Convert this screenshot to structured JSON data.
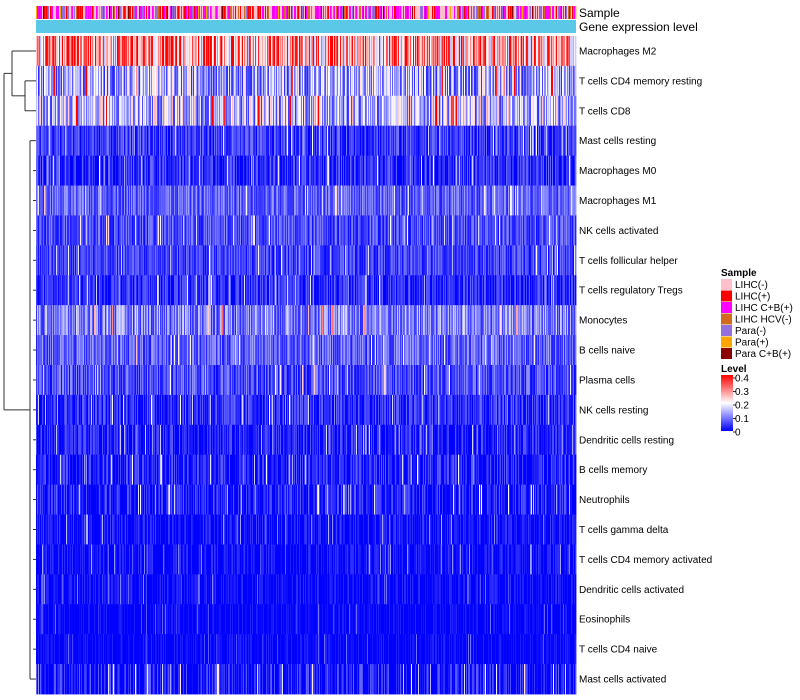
{
  "chart_data": {
    "type": "heatmap",
    "title": "",
    "annotation_tracks": [
      "Sample",
      "Gene expression level"
    ],
    "rows": [
      {
        "label": "Macrophages M2",
        "mean": 0.28,
        "spread": 0.13
      },
      {
        "label": "T cells CD4 memory resting",
        "mean": 0.13,
        "spread": 0.1
      },
      {
        "label": "T cells CD8",
        "mean": 0.15,
        "spread": 0.11
      },
      {
        "label": "Mast cells resting",
        "mean": 0.045,
        "spread": 0.05
      },
      {
        "label": "Macrophages M0",
        "mean": 0.035,
        "spread": 0.05
      },
      {
        "label": "Macrophages M1",
        "mean": 0.075,
        "spread": 0.05
      },
      {
        "label": "NK cells activated",
        "mean": 0.06,
        "spread": 0.05
      },
      {
        "label": "T cells follicular helper",
        "mean": 0.05,
        "spread": 0.045
      },
      {
        "label": "T cells regulatory  Tregs",
        "mean": 0.035,
        "spread": 0.045
      },
      {
        "label": "Monocytes",
        "mean": 0.1,
        "spread": 0.07
      },
      {
        "label": "B cells naive",
        "mean": 0.075,
        "spread": 0.055
      },
      {
        "label": "Plasma cells",
        "mean": 0.06,
        "spread": 0.055
      },
      {
        "label": "NK cells resting",
        "mean": 0.035,
        "spread": 0.05
      },
      {
        "label": "Dendritic cells resting",
        "mean": 0.025,
        "spread": 0.045
      },
      {
        "label": "B cells memory",
        "mean": 0.025,
        "spread": 0.05
      },
      {
        "label": "Neutrophils",
        "mean": 0.025,
        "spread": 0.05
      },
      {
        "label": "T cells gamma delta",
        "mean": 0.012,
        "spread": 0.04
      },
      {
        "label": "T cells CD4 memory activated",
        "mean": 0.008,
        "spread": 0.035
      },
      {
        "label": "Dendritic cells activated",
        "mean": 0.008,
        "spread": 0.03
      },
      {
        "label": "Eosinophils",
        "mean": 0.004,
        "spread": 0.025
      },
      {
        "label": "T cells CD4 naive",
        "mean": 0.004,
        "spread": 0.025
      },
      {
        "label": "Mast cells activated",
        "mean": 0.02,
        "spread": 0.06
      }
    ],
    "n_samples": 540,
    "sample_legend": {
      "title": "Sample",
      "entries": [
        {
          "label": "LIHC(-)",
          "color": "#FFC0CB"
        },
        {
          "label": "LIHC(+)",
          "color": "#FF0000"
        },
        {
          "label": "LIHC C+B(+)",
          "color": "#FF00FF"
        },
        {
          "label": "LIHC HCV(-)",
          "color": "#D2691E"
        },
        {
          "label": "Para(-)",
          "color": "#9370DB"
        },
        {
          "label": "Para(+)",
          "color": "#FFA500"
        },
        {
          "label": "Para C+B(+)",
          "color": "#8B0000"
        }
      ]
    },
    "level_legend": {
      "title": "Level",
      "range": [
        0,
        0.4
      ],
      "ticks": [
        "0.4",
        "0.3",
        "0.2",
        "0.1",
        "0"
      ],
      "colors": [
        "#0000FF",
        "#FFFFFF",
        "#FF0000"
      ]
    },
    "gene_expression_color": "#5BC8E8",
    "clustering": "hierarchical rows, dendrogram on left"
  }
}
